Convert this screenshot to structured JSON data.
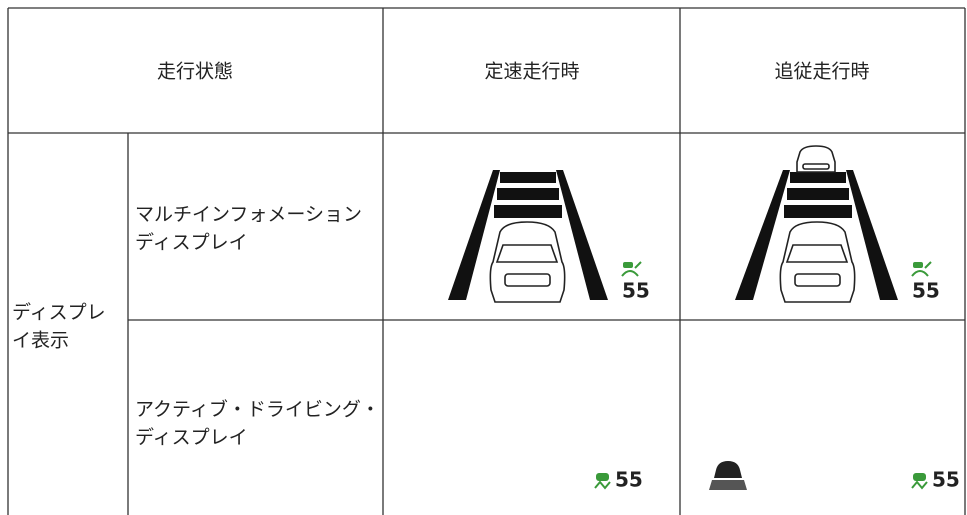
{
  "table": {
    "header": [
      "走行状態",
      "定速走行時",
      "追従走行時"
    ],
    "group": [
      "ディスプレ",
      "イ表示"
    ],
    "rows": [
      {
        "label": [
          "マルチインフォメーション",
          "ディスプレイ"
        ],
        "cells": [
          "55",
          "55"
        ]
      },
      {
        "label": [
          "アクティブ・ドライビング・",
          "ディスプレイ"
        ],
        "cells": [
          "55",
          "55"
        ]
      }
    ]
  }
}
